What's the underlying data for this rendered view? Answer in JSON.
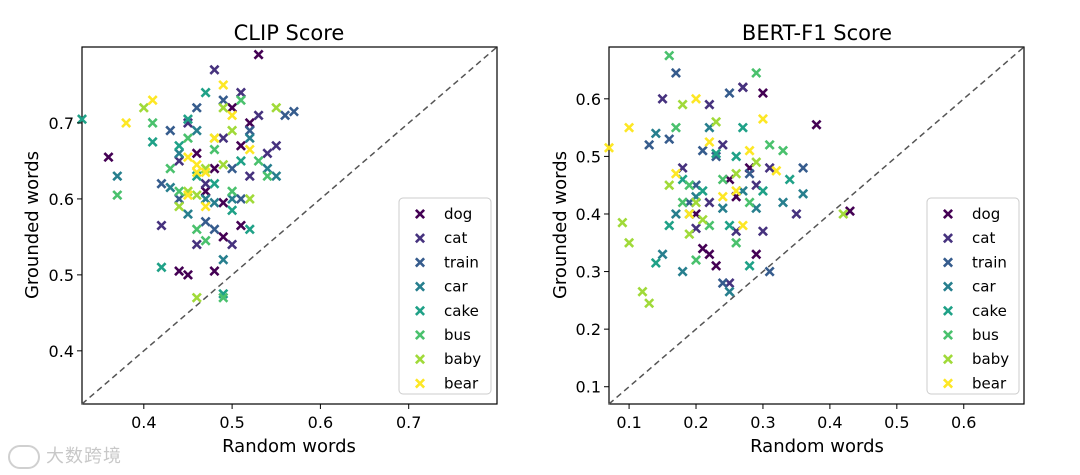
{
  "watermark": "大数跨境",
  "chart_data": [
    {
      "type": "scatter",
      "title": "CLIP Score",
      "xlabel": "Random words",
      "ylabel": "Grounded words",
      "xlim": [
        0.33,
        0.8
      ],
      "ylim": [
        0.33,
        0.8
      ],
      "xticks": [
        "0.4",
        "0.5",
        "0.6",
        "0.7"
      ],
      "yticks": [
        "0.4",
        "0.5",
        "0.6",
        "0.7"
      ],
      "diagonal": "y = x dashed",
      "legend_position": "lower-right",
      "series": [
        {
          "name": "dog",
          "color": "#440154",
          "points": [
            [
              0.36,
              0.655
            ],
            [
              0.44,
              0.505
            ],
            [
              0.45,
              0.5
            ],
            [
              0.48,
              0.505
            ],
            [
              0.47,
              0.61
            ],
            [
              0.48,
              0.64
            ],
            [
              0.49,
              0.55
            ],
            [
              0.5,
              0.72
            ],
            [
              0.51,
              0.67
            ],
            [
              0.52,
              0.7
            ],
            [
              0.53,
              0.79
            ],
            [
              0.46,
              0.66
            ],
            [
              0.51,
              0.565
            ],
            [
              0.49,
              0.595
            ]
          ]
        },
        {
          "name": "cat",
          "color": "#46327e",
          "points": [
            [
              0.42,
              0.565
            ],
            [
              0.44,
              0.65
            ],
            [
              0.46,
              0.54
            ],
            [
              0.48,
              0.77
            ],
            [
              0.49,
              0.68
            ],
            [
              0.5,
              0.54
            ],
            [
              0.51,
              0.74
            ],
            [
              0.53,
              0.71
            ],
            [
              0.54,
              0.66
            ],
            [
              0.55,
              0.67
            ],
            [
              0.47,
              0.62
            ],
            [
              0.52,
              0.63
            ],
            [
              0.45,
              0.7
            ]
          ]
        },
        {
          "name": "train",
          "color": "#365c8d",
          "points": [
            [
              0.42,
              0.62
            ],
            [
              0.44,
              0.6
            ],
            [
              0.46,
              0.72
            ],
            [
              0.47,
              0.57
            ],
            [
              0.49,
              0.73
            ],
            [
              0.51,
              0.6
            ],
            [
              0.52,
              0.69
            ],
            [
              0.56,
              0.71
            ],
            [
              0.57,
              0.715
            ],
            [
              0.43,
              0.69
            ],
            [
              0.5,
              0.64
            ],
            [
              0.48,
              0.56
            ]
          ]
        },
        {
          "name": "car",
          "color": "#277f8e",
          "points": [
            [
              0.37,
              0.63
            ],
            [
              0.43,
              0.615
            ],
            [
              0.45,
              0.58
            ],
            [
              0.47,
              0.6
            ],
            [
              0.49,
              0.52
            ],
            [
              0.5,
              0.6
            ],
            [
              0.52,
              0.68
            ],
            [
              0.54,
              0.64
            ],
            [
              0.55,
              0.63
            ],
            [
              0.46,
              0.69
            ],
            [
              0.44,
              0.66
            ],
            [
              0.48,
              0.595
            ]
          ]
        },
        {
          "name": "cake",
          "color": "#1fa187",
          "points": [
            [
              0.33,
              0.705
            ],
            [
              0.42,
              0.51
            ],
            [
              0.44,
              0.67
            ],
            [
              0.45,
              0.705
            ],
            [
              0.47,
              0.74
            ],
            [
              0.48,
              0.62
            ],
            [
              0.49,
              0.475
            ],
            [
              0.5,
              0.585
            ],
            [
              0.52,
              0.56
            ],
            [
              0.41,
              0.675
            ],
            [
              0.46,
              0.63
            ],
            [
              0.51,
              0.65
            ]
          ]
        },
        {
          "name": "bus",
          "color": "#4ac16d",
          "points": [
            [
              0.37,
              0.605
            ],
            [
              0.41,
              0.7
            ],
            [
              0.43,
              0.64
            ],
            [
              0.44,
              0.61
            ],
            [
              0.45,
              0.68
            ],
            [
              0.46,
              0.56
            ],
            [
              0.47,
              0.545
            ],
            [
              0.48,
              0.665
            ],
            [
              0.49,
              0.47
            ],
            [
              0.51,
              0.73
            ],
            [
              0.53,
              0.65
            ],
            [
              0.54,
              0.63
            ],
            [
              0.5,
              0.61
            ]
          ]
        },
        {
          "name": "baby",
          "color": "#a0da39",
          "points": [
            [
              0.4,
              0.72
            ],
            [
              0.44,
              0.59
            ],
            [
              0.45,
              0.61
            ],
            [
              0.46,
              0.47
            ],
            [
              0.47,
              0.64
            ],
            [
              0.48,
              0.68
            ],
            [
              0.49,
              0.72
            ],
            [
              0.5,
              0.69
            ],
            [
              0.52,
              0.6
            ],
            [
              0.55,
              0.72
            ],
            [
              0.46,
              0.605
            ],
            [
              0.49,
              0.645
            ]
          ]
        },
        {
          "name": "bear",
          "color": "#fde725",
          "points": [
            [
              0.38,
              0.7
            ],
            [
              0.41,
              0.73
            ],
            [
              0.45,
              0.655
            ],
            [
              0.46,
              0.635
            ],
            [
              0.47,
              0.59
            ],
            [
              0.48,
              0.68
            ],
            [
              0.49,
              0.75
            ],
            [
              0.5,
              0.71
            ],
            [
              0.52,
              0.665
            ],
            [
              0.47,
              0.635
            ],
            [
              0.45,
              0.605
            ],
            [
              0.46,
              0.645
            ]
          ]
        }
      ]
    },
    {
      "type": "scatter",
      "title": "BERT-F1 Score",
      "xlabel": "Random words",
      "ylabel": "Grounded words",
      "xlim": [
        0.07,
        0.69
      ],
      "ylim": [
        0.07,
        0.69
      ],
      "xticks": [
        "0.1",
        "0.2",
        "0.3",
        "0.4",
        "0.5",
        "0.6"
      ],
      "yticks": [
        "0.1",
        "0.2",
        "0.3",
        "0.4",
        "0.5",
        "0.6"
      ],
      "diagonal": "y = x dashed",
      "legend_position": "lower-right",
      "series": [
        {
          "name": "dog",
          "color": "#440154",
          "points": [
            [
              0.2,
              0.4
            ],
            [
              0.21,
              0.34
            ],
            [
              0.22,
              0.33
            ],
            [
              0.25,
              0.46
            ],
            [
              0.27,
              0.62
            ],
            [
              0.28,
              0.48
            ],
            [
              0.3,
              0.61
            ],
            [
              0.38,
              0.555
            ],
            [
              0.43,
              0.405
            ],
            [
              0.23,
              0.31
            ],
            [
              0.26,
              0.43
            ],
            [
              0.29,
              0.33
            ]
          ]
        },
        {
          "name": "cat",
          "color": "#46327e",
          "points": [
            [
              0.15,
              0.6
            ],
            [
              0.18,
              0.48
            ],
            [
              0.2,
              0.375
            ],
            [
              0.22,
              0.59
            ],
            [
              0.24,
              0.52
            ],
            [
              0.26,
              0.37
            ],
            [
              0.27,
              0.62
            ],
            [
              0.29,
              0.45
            ],
            [
              0.3,
              0.37
            ],
            [
              0.31,
              0.48
            ],
            [
              0.35,
              0.4
            ],
            [
              0.22,
              0.42
            ],
            [
              0.25,
              0.28
            ]
          ]
        },
        {
          "name": "train",
          "color": "#365c8d",
          "points": [
            [
              0.13,
              0.52
            ],
            [
              0.16,
              0.53
            ],
            [
              0.17,
              0.645
            ],
            [
              0.19,
              0.42
            ],
            [
              0.21,
              0.51
            ],
            [
              0.23,
              0.5
            ],
            [
              0.24,
              0.28
            ],
            [
              0.25,
              0.61
            ],
            [
              0.28,
              0.47
            ],
            [
              0.31,
              0.3
            ],
            [
              0.36,
              0.48
            ],
            [
              0.2,
              0.45
            ]
          ]
        },
        {
          "name": "car",
          "color": "#277f8e",
          "points": [
            [
              0.14,
              0.54
            ],
            [
              0.15,
              0.33
            ],
            [
              0.18,
              0.3
            ],
            [
              0.2,
              0.43
            ],
            [
              0.22,
              0.55
            ],
            [
              0.24,
              0.41
            ],
            [
              0.25,
              0.265
            ],
            [
              0.27,
              0.44
            ],
            [
              0.29,
              0.41
            ],
            [
              0.33,
              0.42
            ],
            [
              0.36,
              0.435
            ],
            [
              0.17,
              0.4
            ]
          ]
        },
        {
          "name": "cake",
          "color": "#1fa187",
          "points": [
            [
              0.14,
              0.315
            ],
            [
              0.16,
              0.38
            ],
            [
              0.18,
              0.46
            ],
            [
              0.19,
              0.4
            ],
            [
              0.21,
              0.44
            ],
            [
              0.23,
              0.505
            ],
            [
              0.25,
              0.38
            ],
            [
              0.27,
              0.55
            ],
            [
              0.28,
              0.31
            ],
            [
              0.3,
              0.44
            ],
            [
              0.34,
              0.46
            ],
            [
              0.26,
              0.5
            ]
          ]
        },
        {
          "name": "bus",
          "color": "#4ac16d",
          "points": [
            [
              0.16,
              0.675
            ],
            [
              0.17,
              0.55
            ],
            [
              0.19,
              0.45
            ],
            [
              0.2,
              0.32
            ],
            [
              0.22,
              0.38
            ],
            [
              0.24,
              0.46
            ],
            [
              0.26,
              0.35
            ],
            [
              0.29,
              0.645
            ],
            [
              0.31,
              0.52
            ],
            [
              0.33,
              0.51
            ],
            [
              0.18,
              0.42
            ],
            [
              0.28,
              0.42
            ]
          ]
        },
        {
          "name": "baby",
          "color": "#a0da39",
          "points": [
            [
              0.09,
              0.385
            ],
            [
              0.1,
              0.35
            ],
            [
              0.12,
              0.265
            ],
            [
              0.13,
              0.245
            ],
            [
              0.16,
              0.45
            ],
            [
              0.18,
              0.59
            ],
            [
              0.19,
              0.365
            ],
            [
              0.2,
              0.42
            ],
            [
              0.23,
              0.56
            ],
            [
              0.29,
              0.49
            ],
            [
              0.42,
              0.4
            ],
            [
              0.21,
              0.39
            ],
            [
              0.26,
              0.47
            ]
          ]
        },
        {
          "name": "bear",
          "color": "#fde725",
          "points": [
            [
              0.07,
              0.515
            ],
            [
              0.1,
              0.55
            ],
            [
              0.17,
              0.47
            ],
            [
              0.19,
              0.4
            ],
            [
              0.2,
              0.6
            ],
            [
              0.22,
              0.525
            ],
            [
              0.24,
              0.43
            ],
            [
              0.26,
              0.44
            ],
            [
              0.28,
              0.51
            ],
            [
              0.3,
              0.565
            ],
            [
              0.32,
              0.475
            ],
            [
              0.27,
              0.38
            ]
          ]
        }
      ]
    }
  ]
}
